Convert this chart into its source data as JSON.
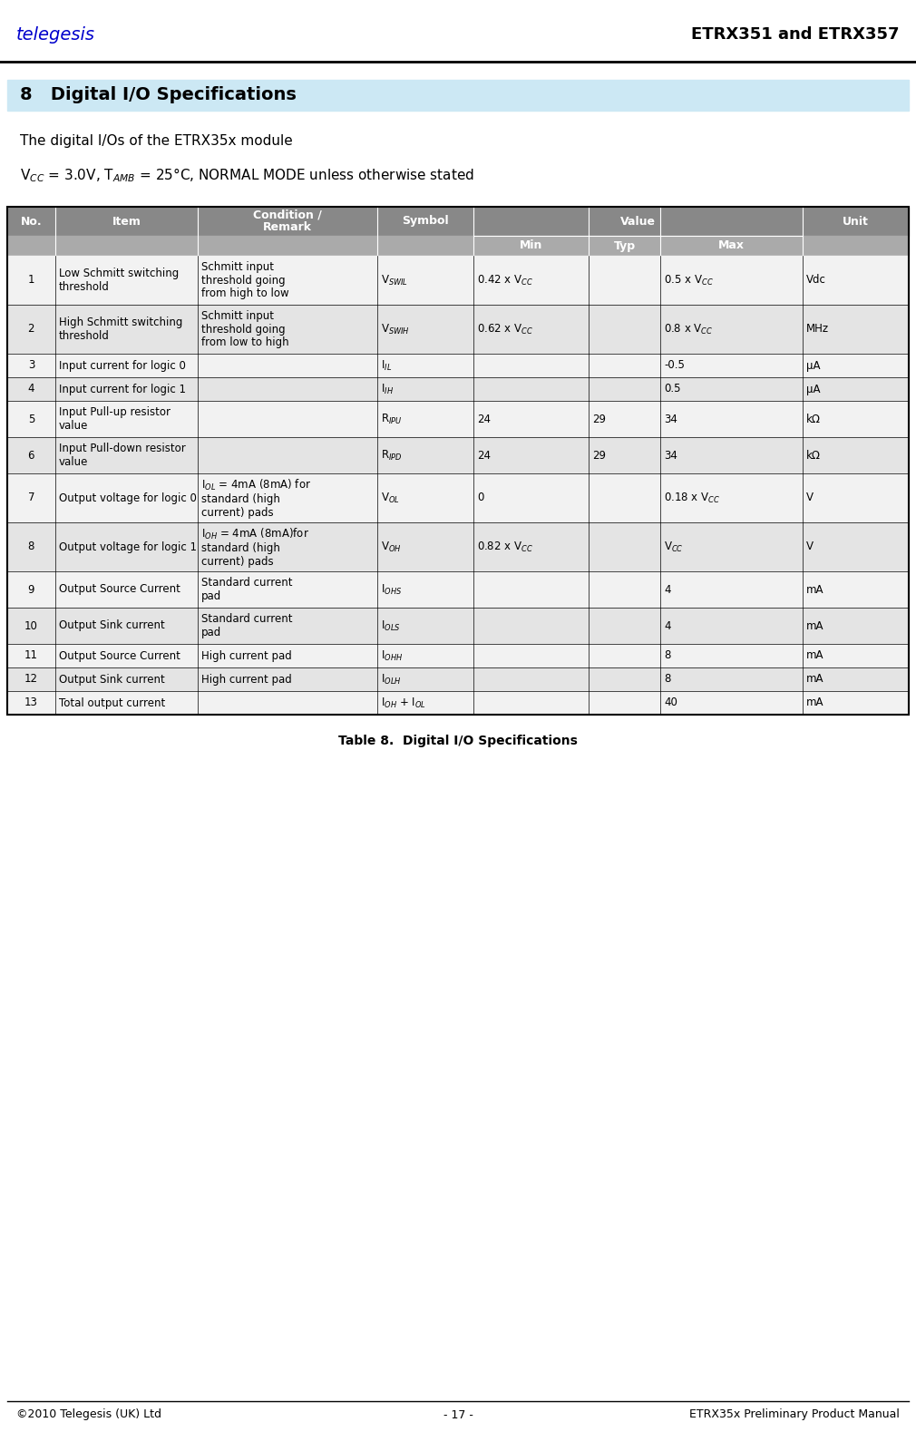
{
  "header_title": "ETRX351 and ETRX357",
  "section_number": "8",
  "section_title": "Digital I/O Specifications",
  "section_bg_color": "#cce8f4",
  "intro_line1": "The digital I/Os of the ETRX35x module",
  "table_caption": "Table 8.  Digital I/O Specifications",
  "footer_left": "©2010 Telegesis (UK) Ltd",
  "footer_mid": "- 17 -",
  "footer_right": "ETRX35x Preliminary Product Manual",
  "header_bg": "#888888",
  "subheader_bg": "#aaaaaa",
  "row_bg_odd": "#f2f2f2",
  "row_bg_even": "#e4e4e4",
  "rows": [
    {
      "no": "1",
      "item": "Low Schmitt switching\nthreshold",
      "condition": "Schmitt input\nthreshold going\nfrom high to low",
      "symbol": "V$_{SWIL}$",
      "min": "0.42 x V$_{CC}$",
      "typ": "",
      "max": "0.5 x V$_{CC}$",
      "unit": "Vdc"
    },
    {
      "no": "2",
      "item": "High Schmitt switching\nthreshold",
      "condition": "Schmitt input\nthreshold going\nfrom low to high",
      "symbol": "V$_{SWIH}$",
      "min": "0.62 x V$_{CC}$",
      "typ": "",
      "max": "0.8 x V$_{CC}$",
      "unit": "MHz"
    },
    {
      "no": "3",
      "item": "Input current for logic 0",
      "condition": "",
      "symbol": "I$_{IL}$",
      "min": "",
      "typ": "",
      "max": "-0.5",
      "unit": "μA"
    },
    {
      "no": "4",
      "item": "Input current for logic 1",
      "condition": "",
      "symbol": "I$_{IH}$",
      "min": "",
      "typ": "",
      "max": "0.5",
      "unit": "μA"
    },
    {
      "no": "5",
      "item": "Input Pull-up resistor\nvalue",
      "condition": "",
      "symbol": "R$_{IPU}$",
      "min": "24",
      "typ": "29",
      "max": "34",
      "unit": "kΩ"
    },
    {
      "no": "6",
      "item": "Input Pull-down resistor\nvalue",
      "condition": "",
      "symbol": "R$_{IPD}$",
      "min": "24",
      "typ": "29",
      "max": "34",
      "unit": "kΩ"
    },
    {
      "no": "7",
      "item": "Output voltage for logic 0",
      "condition": "I$_{OL}$ = 4mA (8mA) for\nstandard (high\ncurrent) pads",
      "symbol": "V$_{OL}$",
      "min": "0",
      "typ": "",
      "max": "0.18 x V$_{CC}$",
      "unit": "V"
    },
    {
      "no": "8",
      "item": "Output voltage for logic 1",
      "condition": "I$_{OH}$ = 4mA (8mA)for\nstandard (high\ncurrent) pads",
      "symbol": "V$_{OH}$",
      "min": "0.82 x V$_{CC}$",
      "typ": "",
      "max": "V$_{CC}$",
      "unit": "V"
    },
    {
      "no": "9",
      "item": "Output Source Current",
      "condition": "Standard current\npad",
      "symbol": "I$_{OHS}$",
      "min": "",
      "typ": "",
      "max": "4",
      "unit": "mA"
    },
    {
      "no": "10",
      "item": "Output Sink current",
      "condition": "Standard current\npad",
      "symbol": "I$_{OLS}$",
      "min": "",
      "typ": "",
      "max": "4",
      "unit": "mA"
    },
    {
      "no": "11",
      "item": "Output Source Current",
      "condition": "High current pad",
      "symbol": "I$_{OHH}$",
      "min": "",
      "typ": "",
      "max": "8",
      "unit": "mA"
    },
    {
      "no": "12",
      "item": "Output Sink current",
      "condition": "High current pad",
      "symbol": "I$_{OLH}$",
      "min": "",
      "typ": "",
      "max": "8",
      "unit": "mA"
    },
    {
      "no": "13",
      "item": "Total output current",
      "condition": "",
      "symbol": "I$_{OH}$ + I$_{OL}$",
      "min": "",
      "typ": "",
      "max": "40",
      "unit": "mA"
    }
  ]
}
